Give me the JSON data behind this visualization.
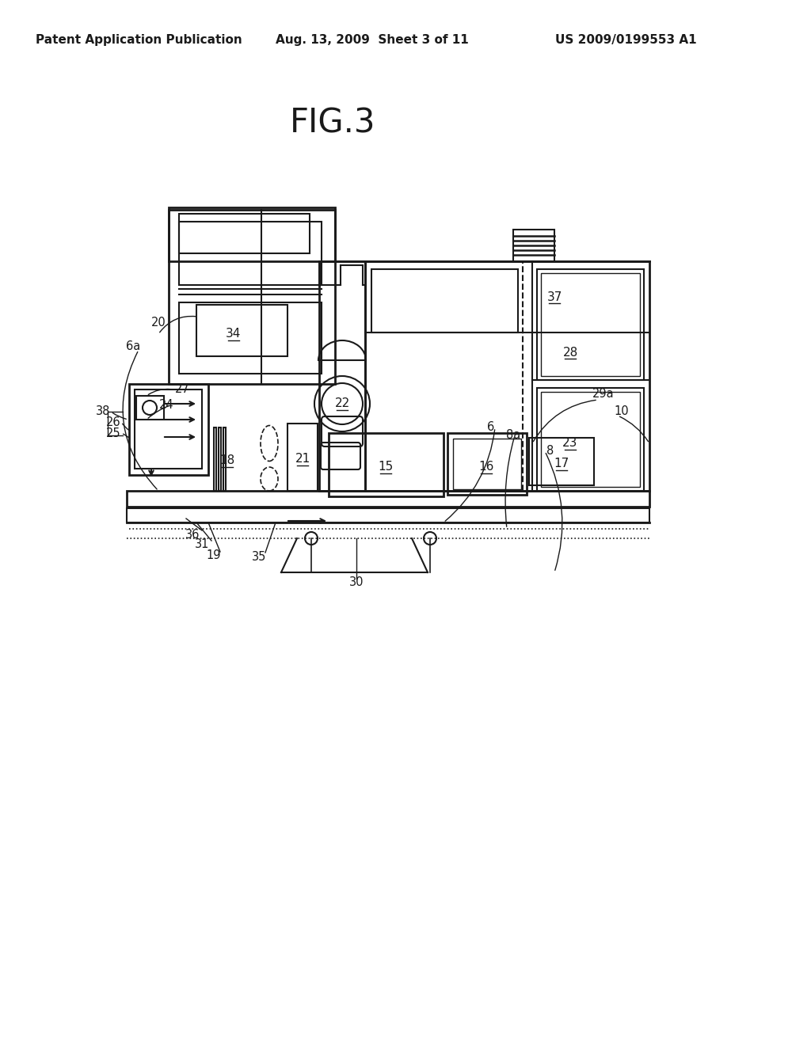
{
  "title": "FIG.3",
  "header_left": "Patent Application Publication",
  "header_mid": "Aug. 13, 2009  Sheet 3 of 11",
  "header_right": "US 2009/0199553 A1",
  "bg_color": "#ffffff",
  "lc": "#1a1a1a",
  "fig_w": 1024,
  "fig_h": 1320
}
